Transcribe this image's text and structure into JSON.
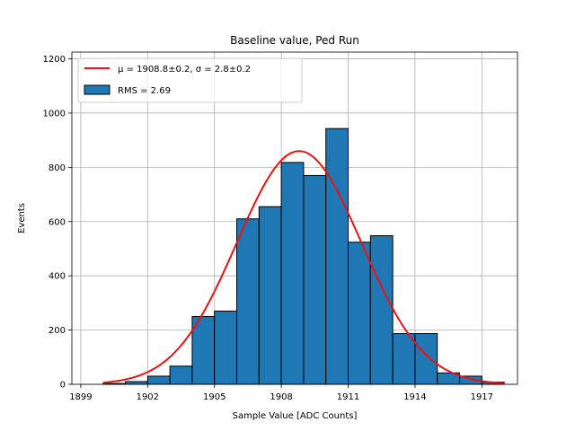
{
  "chart_data": {
    "type": "bar",
    "title": "Baseline value, Ped Run",
    "xlabel": "Sample Value [ADC Counts]",
    "ylabel": "Events",
    "xlim": [
      1898.6,
      1918.6
    ],
    "ylim": [
      0,
      1225
    ],
    "xticks": [
      1899,
      1902,
      1905,
      1908,
      1911,
      1914,
      1917
    ],
    "yticks": [
      0,
      200,
      400,
      600,
      800,
      1000,
      1200
    ],
    "grid": true,
    "legend_position": "top-left",
    "bin_width": 1,
    "bins": [
      {
        "left": 1900.0,
        "value": 3
      },
      {
        "left": 1901.0,
        "value": 10
      },
      {
        "left": 1902.0,
        "value": 30
      },
      {
        "left": 1903.0,
        "value": 67
      },
      {
        "left": 1904.0,
        "value": 250
      },
      {
        "left": 1905.0,
        "value": 270
      },
      {
        "left": 1906.0,
        "value": 610
      },
      {
        "left": 1907.0,
        "value": 655
      },
      {
        "left": 1908.0,
        "value": 818
      },
      {
        "left": 1909.0,
        "value": 770
      },
      {
        "left": 1910.0,
        "value": 943
      },
      {
        "left": 1911.0,
        "value": 524
      },
      {
        "left": 1912.0,
        "value": 548
      },
      {
        "left": 1913.0,
        "value": 187
      },
      {
        "left": 1914.0,
        "value": 187
      },
      {
        "left": 1915.0,
        "value": 42
      },
      {
        "left": 1916.0,
        "value": 30
      },
      {
        "left": 1917.0,
        "value": 8
      }
    ],
    "fit": {
      "label": "μ = 1908.8±0.2, σ = 2.8±0.2",
      "mu": 1908.8,
      "sigma": 2.8,
      "amplitude": 860,
      "x_start": 1900.0,
      "x_end": 1918.0,
      "color": "#ee1111"
    },
    "histogram_label": "RMS = 2.69",
    "bar_color": "#1f77b4"
  }
}
